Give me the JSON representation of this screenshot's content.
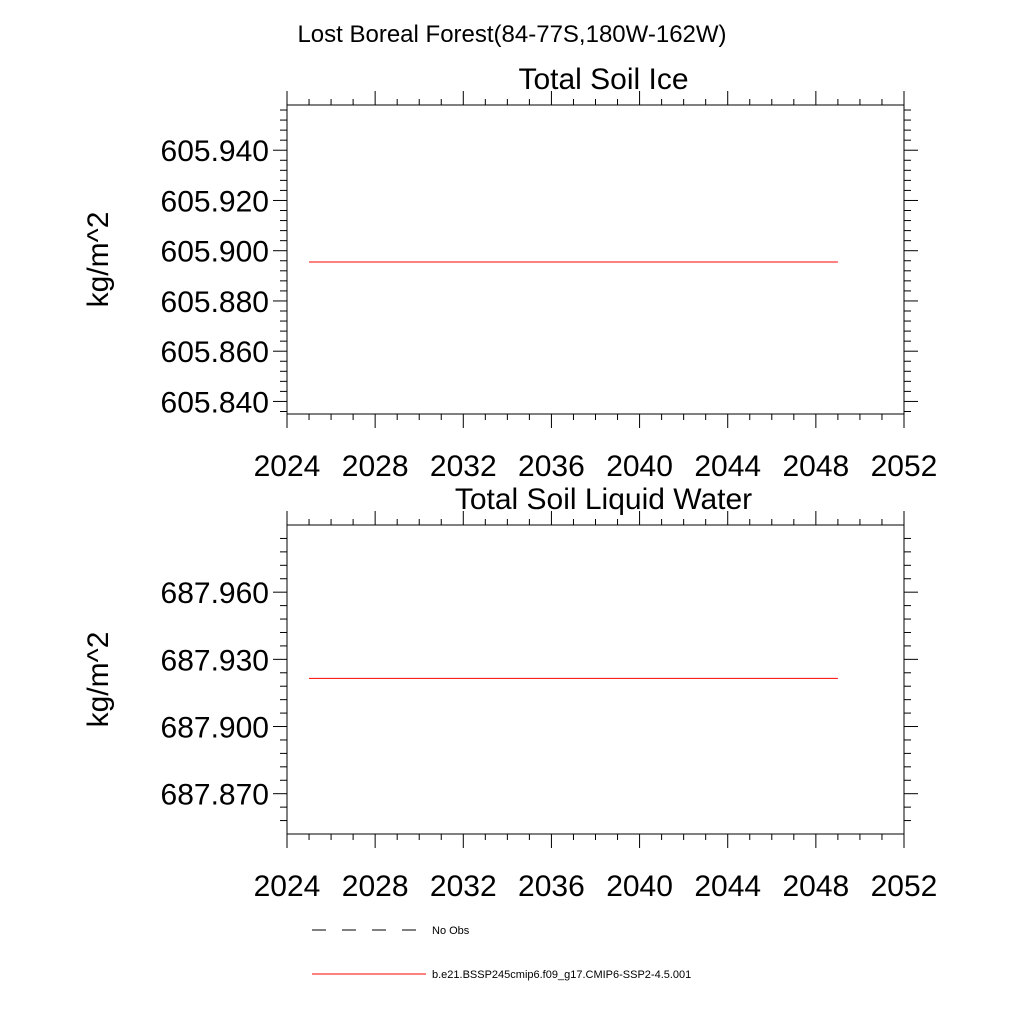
{
  "figure": {
    "suptitle": "Lost Boreal Forest(84-77S,180W-162W)"
  },
  "chart_data": [
    {
      "type": "line",
      "title": "Total Soil Ice",
      "xlabel": "",
      "ylabel": "kg/m^2",
      "xlim": [
        2024,
        2052
      ],
      "ylim": [
        605.835,
        605.958
      ],
      "x_ticks": [
        2024,
        2028,
        2032,
        2036,
        2040,
        2044,
        2048,
        2052
      ],
      "x_tick_labels": [
        "2024",
        "2028",
        "2032",
        "2036",
        "2040",
        "2044",
        "2048",
        "2052"
      ],
      "y_ticks": [
        605.84,
        605.86,
        605.88,
        605.9,
        605.92,
        605.94
      ],
      "y_tick_labels": [
        "605.840",
        "605.860",
        "605.880",
        "605.900",
        "605.920",
        "605.940"
      ],
      "grid": false,
      "series": [
        {
          "name": "b.e21.BSSP245cmip6.f09_g17.CMIP6-SSP2-4.5.001",
          "color": "#ff0000",
          "x": [
            2025,
            2049
          ],
          "y": [
            605.8955,
            605.8955
          ]
        }
      ]
    },
    {
      "type": "line",
      "title": "Total Soil Liquid Water",
      "xlabel": "",
      "ylabel": "kg/m^2",
      "xlim": [
        2024,
        2052
      ],
      "ylim": [
        687.852,
        687.99
      ],
      "x_ticks": [
        2024,
        2028,
        2032,
        2036,
        2040,
        2044,
        2048,
        2052
      ],
      "x_tick_labels": [
        "2024",
        "2028",
        "2032",
        "2036",
        "2040",
        "2044",
        "2048",
        "2052"
      ],
      "y_ticks": [
        687.87,
        687.9,
        687.93,
        687.96
      ],
      "y_tick_labels": [
        "687.870",
        "687.900",
        "687.930",
        "687.960"
      ],
      "grid": false,
      "series": [
        {
          "name": "b.e21.BSSP245cmip6.f09_g17.CMIP6-SSP2-4.5.001",
          "color": "#ff0000",
          "x": [
            2025,
            2049
          ],
          "y": [
            687.9215,
            687.9215
          ]
        }
      ]
    }
  ],
  "legend": {
    "placement": "bottom-left",
    "items": [
      {
        "label": "No Obs",
        "style": "dashed",
        "color": "#000000"
      },
      {
        "label": "b.e21.BSSP245cmip6.f09_g17.CMIP6-SSP2-4.5.001",
        "style": "solid",
        "color": "#ff0000"
      }
    ]
  }
}
